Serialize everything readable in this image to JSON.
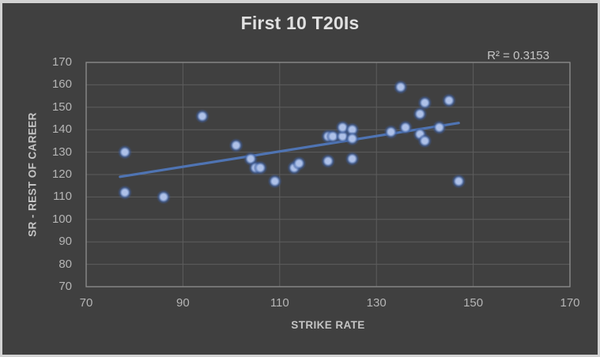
{
  "window": {
    "outer_border_color": "#d3d3d3",
    "background_color": "#404040"
  },
  "chart_data": {
    "type": "scatter",
    "title": "First 10 T20Is",
    "xlabel": "STRIKE RATE",
    "ylabel": "SR - REST OF CAREER",
    "annotation": "R² = 0.3153",
    "r_squared": 0.3153,
    "xlim": [
      70,
      170
    ],
    "ylim": [
      70,
      170
    ],
    "xticks": [
      70,
      90,
      110,
      130,
      150,
      170
    ],
    "yticks": [
      70,
      80,
      90,
      100,
      110,
      120,
      130,
      140,
      150,
      160,
      170
    ],
    "grid": true,
    "legend": "none",
    "points": [
      [
        78,
        130
      ],
      [
        78,
        112
      ],
      [
        86,
        110
      ],
      [
        94,
        146
      ],
      [
        101,
        133
      ],
      [
        104,
        127
      ],
      [
        105,
        123
      ],
      [
        106,
        123
      ],
      [
        109,
        117
      ],
      [
        113,
        123
      ],
      [
        114,
        125
      ],
      [
        120,
        137
      ],
      [
        121,
        137
      ],
      [
        123,
        137
      ],
      [
        123,
        141
      ],
      [
        125,
        140
      ],
      [
        125,
        136
      ],
      [
        120,
        126
      ],
      [
        125,
        127
      ],
      [
        133,
        139
      ],
      [
        135,
        159
      ],
      [
        136,
        141
      ],
      [
        139,
        147
      ],
      [
        139,
        138
      ],
      [
        140,
        152
      ],
      [
        140,
        135
      ],
      [
        143,
        141
      ],
      [
        145,
        153
      ],
      [
        147,
        117
      ]
    ],
    "trendline": {
      "x1": 77,
      "y1": 119,
      "x2": 147,
      "y2": 143
    },
    "colors": {
      "point_core": "#aec1e8",
      "point_mid": "#7d9ad0",
      "point_halo": "#3c5c9c",
      "trend": "#4f74b3",
      "grid": "#5d5d5d",
      "frame": "#8f8f8f",
      "title": "#e0e0e0",
      "tick": "#b5b5b5",
      "axis_title": "#c4c4c4",
      "annotation": "#c6c6c6"
    }
  }
}
